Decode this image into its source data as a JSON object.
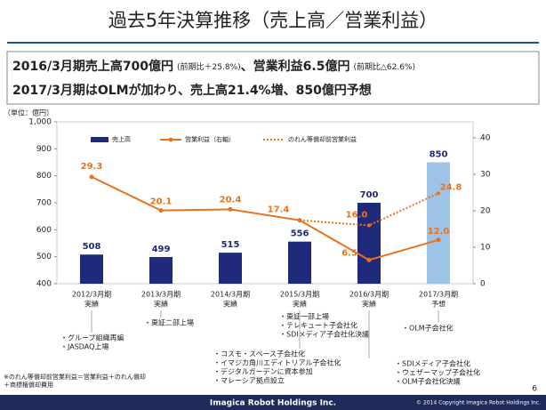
{
  "header": {
    "title": "過去5年決算推移（売上高／営業利益）"
  },
  "summary": {
    "line1": {
      "main1": "2016/3月期売上高700億円",
      "note1": "(前期比＋25.8%)",
      "main2": "、営業利益6.5億円",
      "note2": "(前期比△62.6%)"
    },
    "line2": "2017/3月期はOLMが加わり、売上高21.4%増、850億円予想"
  },
  "chart_data": {
    "type": "bar",
    "y_label": "（単位：億円）",
    "categories": [
      [
        "2012/3月期",
        "実績"
      ],
      [
        "2013/3月期",
        "実績"
      ],
      [
        "2014/3月期",
        "実績"
      ],
      [
        "2015/3月期",
        "実績"
      ],
      [
        "2016/3月期",
        "実績"
      ],
      [
        "2017/3月期",
        "予想"
      ]
    ],
    "ylim": [
      400,
      1000
    ],
    "yticks": [
      400,
      500,
      600,
      700,
      800,
      900,
      {
        "value": 1000,
        "label": "1,000"
      }
    ],
    "y2lim": [
      0,
      44.4
    ],
    "y2ticks": [
      0,
      10,
      20,
      30,
      40
    ],
    "series": [
      {
        "name": "売上高",
        "type": "bar",
        "colors": [
          "#1f2a7a",
          "#1f2a7a",
          "#1f2a7a",
          "#1f2a7a",
          "#1f2a7a",
          "#9dc3e6"
        ],
        "color": "#1f2a7a",
        "values": [
          508,
          499,
          515,
          556,
          700,
          850
        ]
      },
      {
        "name": "営業利益（右軸）",
        "type": "line",
        "axis": "y2",
        "color": "#e8731e",
        "values": [
          29.3,
          20.1,
          20.4,
          17.4,
          6.5,
          12.0
        ],
        "value_labels": [
          "29.3",
          "20.1",
          "20.4",
          "17.4",
          "6.5",
          "12.0"
        ]
      },
      {
        "name": "のれん等償却前営業利益",
        "type": "line",
        "dashed": true,
        "axis": "y2",
        "color": "#e8731e",
        "values": [
          null,
          null,
          null,
          17.4,
          16.0,
          24.8
        ],
        "value_labels": [
          null,
          null,
          null,
          null,
          "16.0",
          "24.8"
        ]
      }
    ]
  },
  "events": [
    {
      "items": [
        "・グループ組織再編",
        "・JASDAQ上場"
      ]
    },
    {
      "items": [
        "・東証二部上場"
      ]
    },
    {
      "items": [
        "・東証一部上場",
        "・テレキュート子会社化",
        "・SDIメディア子会社化決議"
      ]
    },
    {
      "items": [
        "・コスモ・スペース子会社化",
        "・イマジカ角川エディトリアル子会社化",
        "・デジタルガーデンに資本参加",
        "・マレーシア拠点設立"
      ]
    },
    {
      "items": [
        "・OLM子会社化"
      ]
    },
    {
      "items": [
        "・SDIメディア子会社化",
        "・ウェザーマップ子会社化",
        "・OLM子会社化決議"
      ]
    }
  ],
  "footnote": [
    "※のれん等償却前営業利益＝営業利益＋のれん償却",
    "＋商標権償却費用"
  ],
  "footer": {
    "company": "Imagica Robot Holdings Inc.",
    "copyright": "© 2014 Copyright Imagica Robot Holdings Inc.",
    "page": "6"
  }
}
